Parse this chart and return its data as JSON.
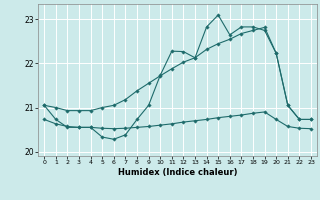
{
  "xlabel": "Humidex (Indice chaleur)",
  "background_color": "#cceaea",
  "grid_color": "#ffffff",
  "line_color": "#1e6b6b",
  "x": [
    0,
    1,
    2,
    3,
    4,
    5,
    6,
    7,
    8,
    9,
    10,
    11,
    12,
    13,
    14,
    15,
    16,
    17,
    18,
    19,
    20,
    21,
    22,
    23
  ],
  "y_jagged": [
    21.05,
    20.73,
    20.55,
    20.55,
    20.55,
    20.33,
    20.28,
    20.38,
    20.73,
    21.05,
    21.73,
    22.28,
    22.27,
    22.13,
    22.83,
    23.1,
    22.65,
    22.83,
    22.83,
    22.75,
    22.23,
    21.05,
    20.73,
    20.73
  ],
  "y_upper": [
    21.05,
    21.0,
    20.93,
    20.93,
    20.93,
    21.0,
    21.05,
    21.18,
    21.38,
    21.55,
    21.72,
    21.88,
    22.03,
    22.13,
    22.32,
    22.45,
    22.55,
    22.68,
    22.75,
    22.82,
    22.23,
    21.05,
    20.73,
    20.73
  ],
  "y_lower": [
    20.73,
    20.63,
    20.57,
    20.55,
    20.55,
    20.53,
    20.52,
    20.53,
    20.55,
    20.57,
    20.6,
    20.63,
    20.67,
    20.7,
    20.73,
    20.77,
    20.8,
    20.83,
    20.87,
    20.9,
    20.73,
    20.57,
    20.53,
    20.52
  ],
  "ylim": [
    19.9,
    23.35
  ],
  "xlim": [
    -0.5,
    23.5
  ],
  "yticks": [
    20,
    21,
    22,
    23
  ],
  "xticks": [
    0,
    1,
    2,
    3,
    4,
    5,
    6,
    7,
    8,
    9,
    10,
    11,
    12,
    13,
    14,
    15,
    16,
    17,
    18,
    19,
    20,
    21,
    22,
    23
  ]
}
